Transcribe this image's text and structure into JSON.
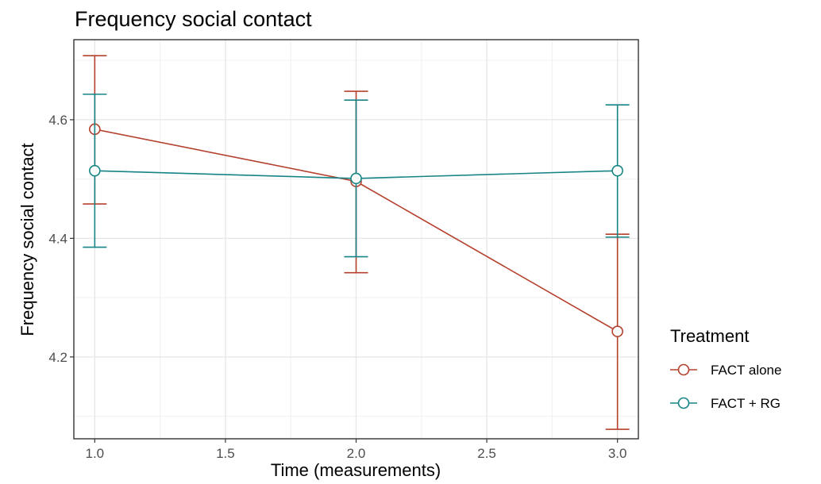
{
  "chart_data": {
    "type": "line",
    "title": "Frequency social contact",
    "xlabel": "Time (measurements)",
    "ylabel": "Frequency social contact",
    "xlim": [
      0.92,
      3.08
    ],
    "ylim": [
      4.062,
      4.735
    ],
    "x_ticks": [
      1.0,
      1.5,
      2.0,
      2.5,
      3.0
    ],
    "x_tick_labels": [
      "1.0",
      "1.5",
      "2.0",
      "2.5",
      "3.0"
    ],
    "y_ticks": [
      4.2,
      4.4,
      4.6
    ],
    "y_tick_labels": [
      "4.2",
      "4.4",
      "4.6"
    ],
    "grid": true,
    "legend": {
      "title": "Treatment",
      "placement": "right"
    },
    "series": [
      {
        "name": "FACT alone",
        "color": "#b5402d",
        "x": [
          1,
          2,
          3
        ],
        "y": [
          4.584,
          4.496,
          4.243
        ],
        "ymin": [
          4.458,
          4.342,
          4.078
        ],
        "ymax": [
          4.708,
          4.648,
          4.407
        ]
      },
      {
        "name": "FACT + RG",
        "color": "#168485",
        "x": [
          1,
          2,
          3
        ],
        "y": [
          4.514,
          4.501,
          4.514
        ],
        "ymin": [
          4.385,
          4.369,
          4.402
        ],
        "ymax": [
          4.643,
          4.633,
          4.625
        ]
      }
    ]
  }
}
